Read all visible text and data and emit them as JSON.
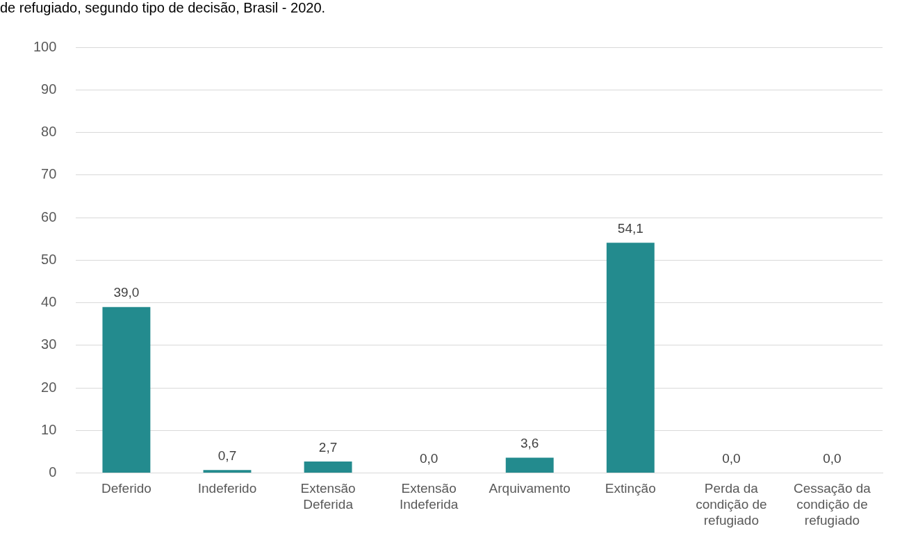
{
  "chart_data": {
    "type": "bar",
    "title": "de refugiado, segundo tipo de decisão, Brasil - 2020.",
    "categories": [
      "Deferido",
      "Indeferido",
      "Extensão Deferida",
      "Extensão Indeferida",
      "Arquivamento",
      "Extinção",
      "Perda da condição de refugiado",
      "Cessação da condição de refugiado"
    ],
    "values": [
      39.0,
      0.7,
      2.7,
      0.0,
      3.6,
      54.1,
      0.0,
      0.0
    ],
    "value_labels": [
      "39,0",
      "0,7",
      "2,7",
      "0,0",
      "3,6",
      "54,1",
      "0,0",
      "0,0"
    ],
    "color": "#238b8e",
    "ylim": [
      0,
      100
    ],
    "yticks": [
      0,
      10,
      20,
      30,
      40,
      50,
      60,
      70,
      80,
      90,
      100
    ],
    "grid": "y"
  }
}
